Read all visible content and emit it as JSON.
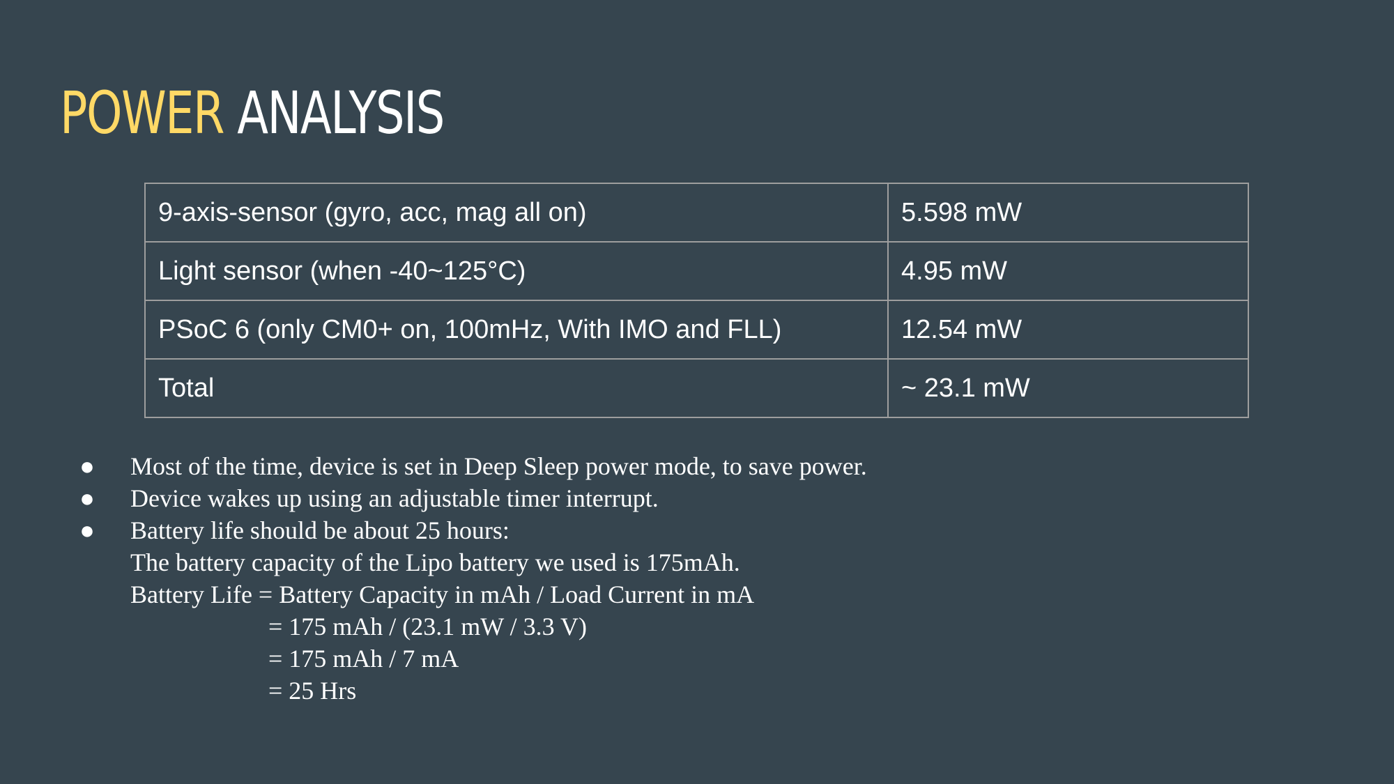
{
  "title": {
    "accent": "POWER",
    "main": "ANALYSIS"
  },
  "table": {
    "rows": [
      {
        "component": "9-axis-sensor (gyro, acc, mag all on)",
        "power": "5.598 mW"
      },
      {
        "component": "Light sensor (when -40~125°C)",
        "power": "4.95 mW"
      },
      {
        "component": "PSoC 6 (only CM0+ on, 100mHz, With IMO and FLL)",
        "power": "12.54 mW"
      },
      {
        "component": "Total",
        "power": "~ 23.1 mW"
      }
    ]
  },
  "bullets": {
    "dot": "●",
    "items": [
      "Most of the time, device is set in Deep Sleep power mode, to save power.",
      "Device wakes up using an adjustable timer interrupt.",
      "Battery life should be about 25 hours:"
    ],
    "continuation": [
      "The battery capacity of the Lipo battery we used is 175mAh.",
      "Battery Life = Battery Capacity in mAh / Load Current in mA"
    ],
    "calculation": [
      "= 175 mAh / (23.1 mW / 3.3 V)",
      "= 175 mAh / 7 mA",
      "= 25 Hrs"
    ]
  },
  "colors": {
    "background": "#36454f",
    "accent": "#ffd966",
    "text": "#ffffff",
    "table_border": "#9e9e9e"
  }
}
